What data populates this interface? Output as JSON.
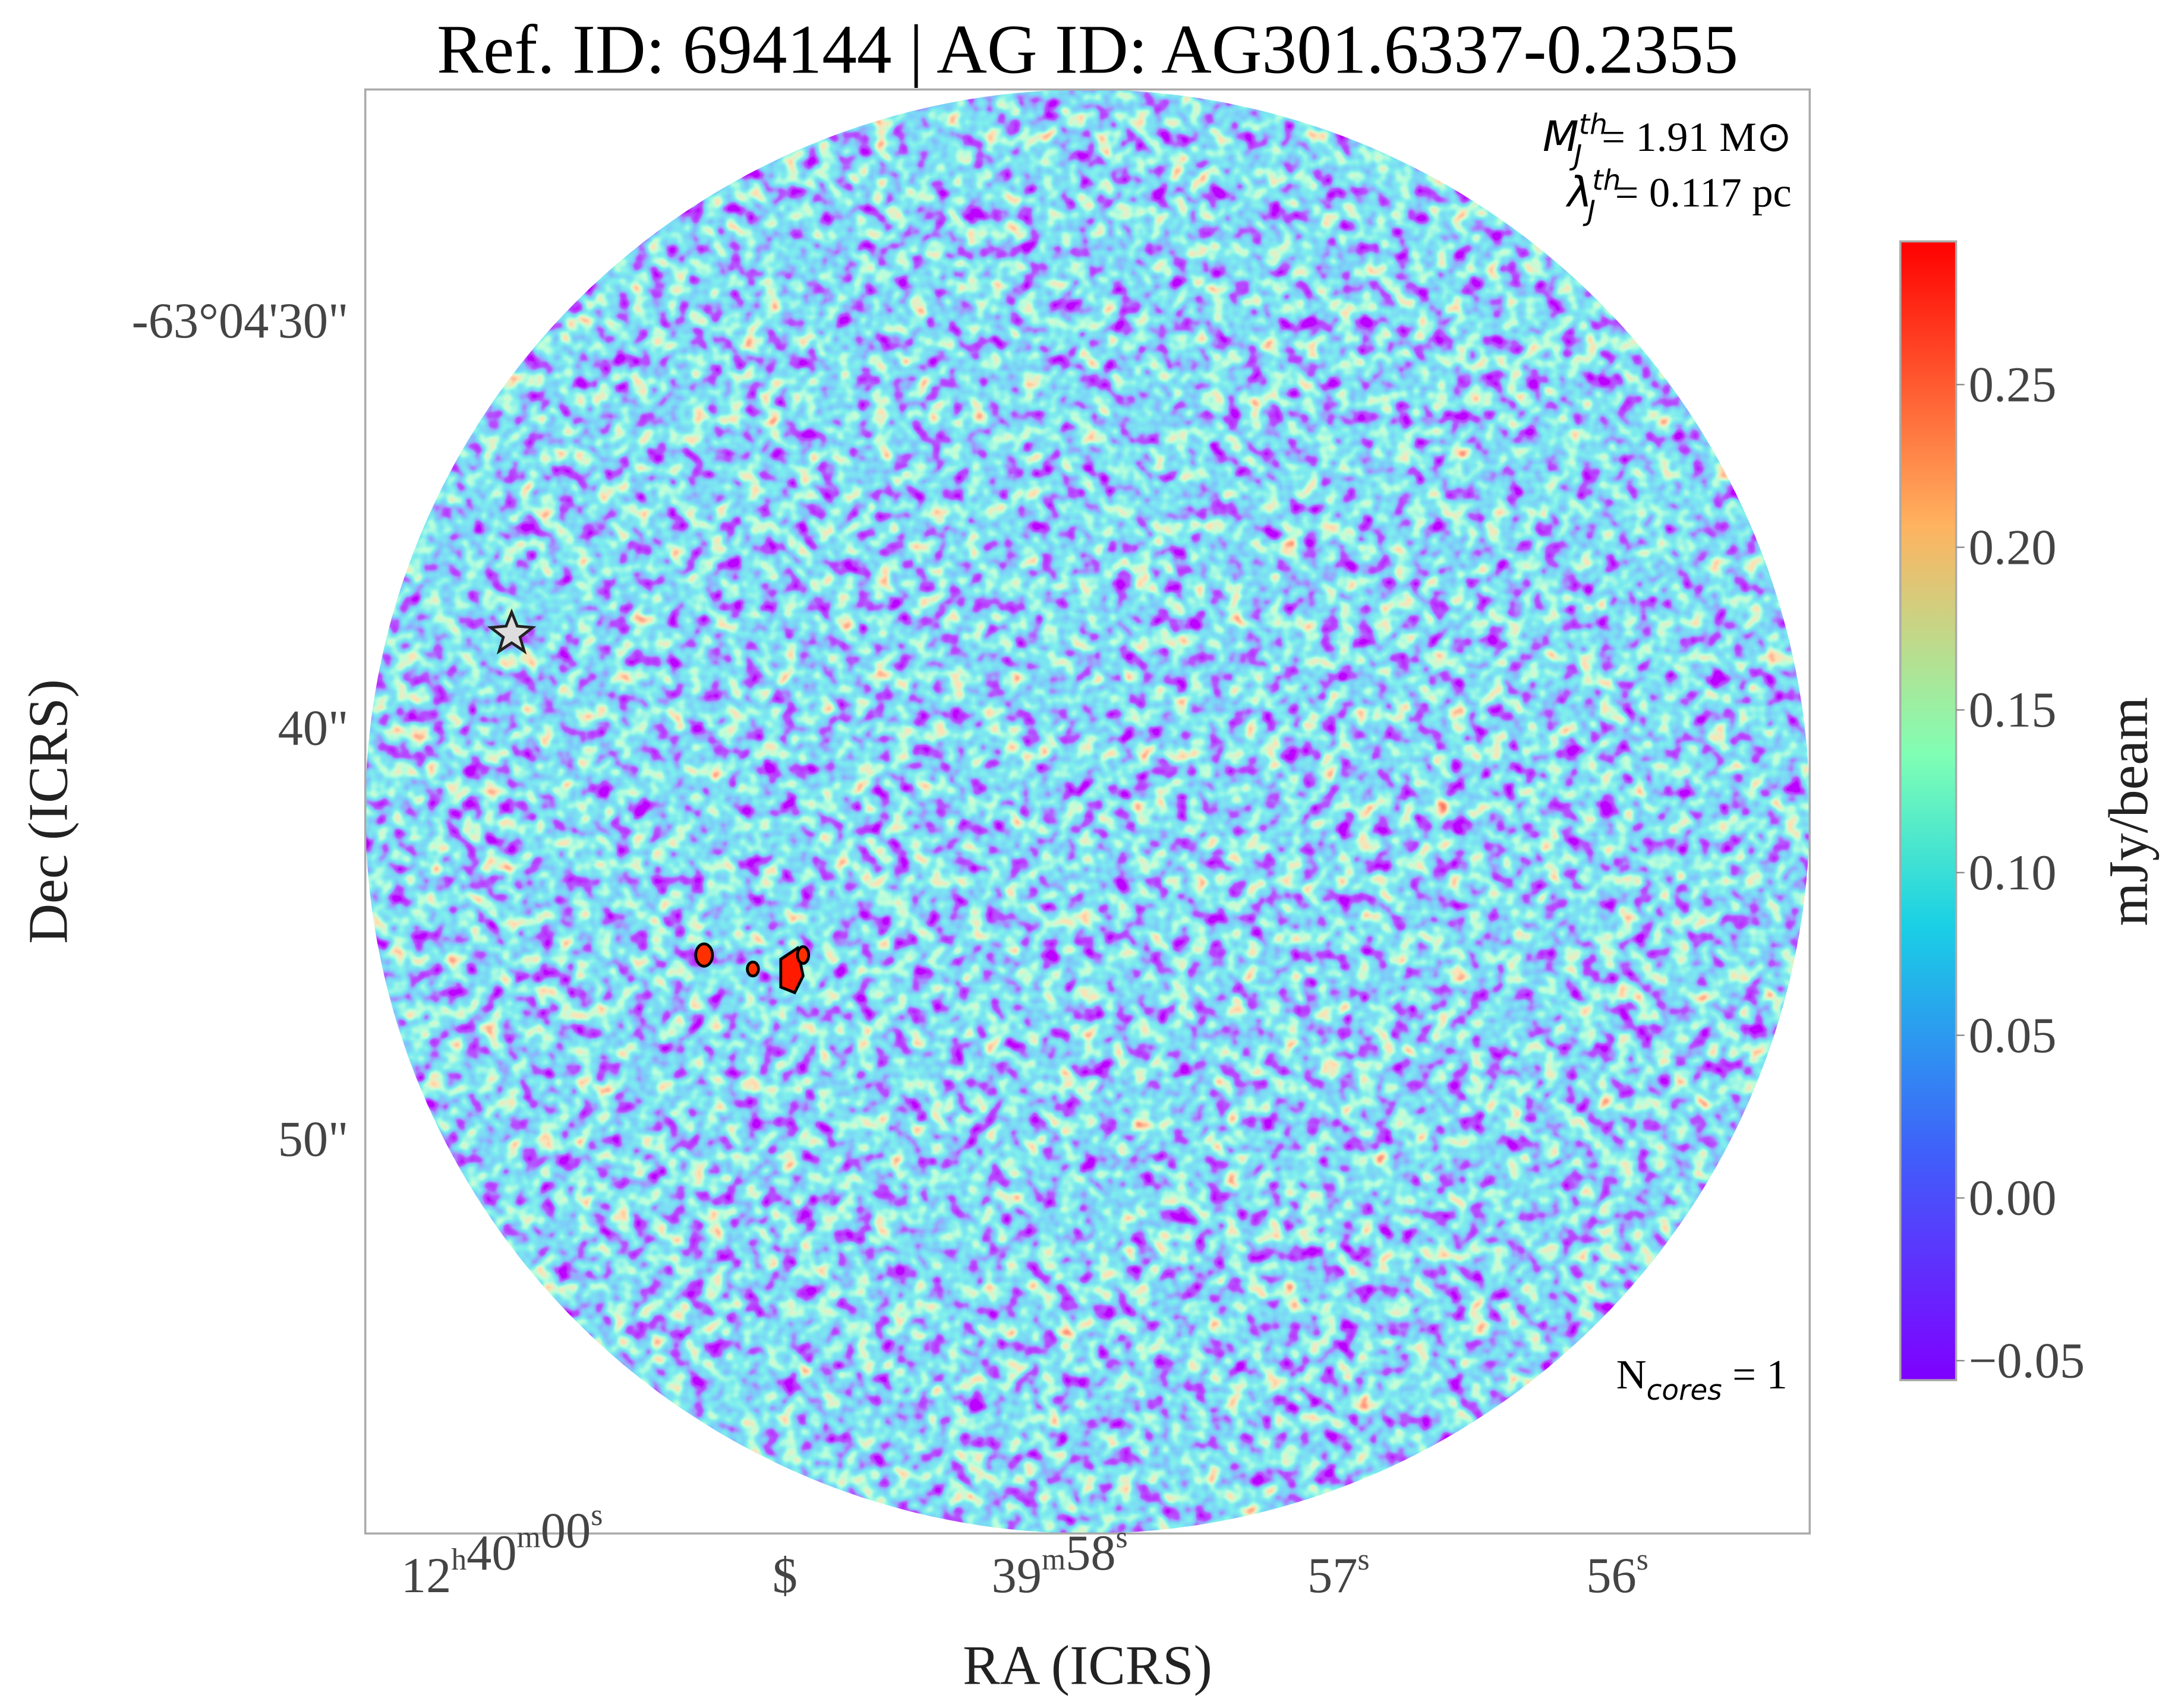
{
  "chart_data": {
    "type": "image",
    "title": "Ref. ID: 694144 | AG ID: AG301.6337-0.2355",
    "xlabel": "RA (ICRS)",
    "ylabel": "Dec (ICRS)",
    "xtick_labels": [
      [
        {
          "text": "12",
          "sup": "h"
        },
        {
          "text": "40",
          "sup": "m"
        },
        {
          "text": "00",
          "sup": "s"
        }
      ],
      [
        {
          "text": "$"
        }
      ],
      [
        {
          "text": "39",
          "sup": "m"
        },
        {
          "text": "58",
          "sup": "s"
        }
      ],
      [
        {
          "text": "57",
          "sup": "s"
        }
      ],
      [
        {
          "text": "56",
          "sup": "s"
        }
      ]
    ],
    "ytick_labels": [
      "-63°04'30\"",
      "40\"",
      "50\""
    ],
    "annotations": [
      {
        "symbol": "M",
        "sub": "J",
        "sup": "th",
        "text": "= 1.91 M⊙"
      },
      {
        "symbol": "λ",
        "sub": "J",
        "sup": "th",
        "text": "= 0.117 pc"
      },
      {
        "symbol": "N",
        "sub": "cores",
        "text": " = 1"
      }
    ],
    "colorbar": {
      "label": "mJy/beam",
      "lim": [
        -0.056,
        0.294
      ],
      "ticks": [
        {
          "value": -0.05,
          "label": "−0.05"
        },
        {
          "value": 0,
          "label": "0.00"
        },
        {
          "value": 0.05,
          "label": "0.05"
        },
        {
          "value": 0.1,
          "label": "0.10"
        },
        {
          "value": 0.15,
          "label": "0.15"
        },
        {
          "value": 0.2,
          "label": "0.20"
        },
        0.25
      ]
    }
  }
}
